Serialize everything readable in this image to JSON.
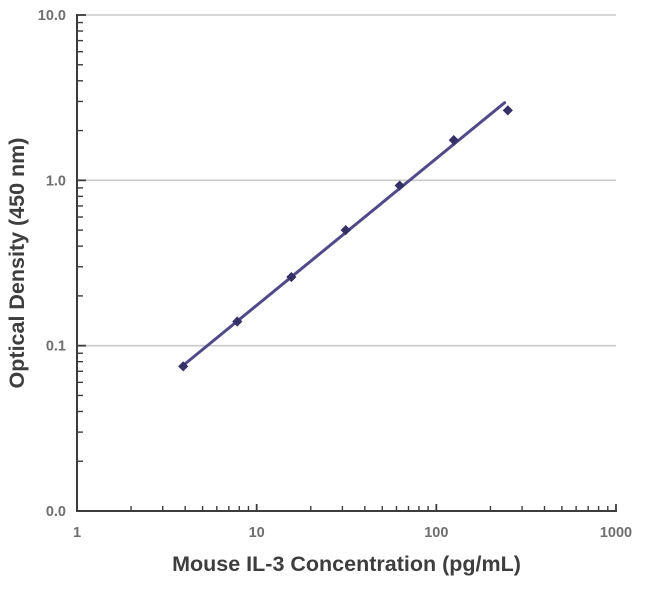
{
  "figure": {
    "background": "#ffffff"
  },
  "chart_data": {
    "type": "scatter",
    "title": "",
    "xlabel": "Mouse IL-3 Concentration (pg/mL)",
    "ylabel": "Optical Density (450 nm)",
    "x_scale": "log",
    "y_scale": "log",
    "xlim": [
      1,
      1000
    ],
    "ylim": [
      0.01,
      10
    ],
    "x_ticks": [
      {
        "value": 1,
        "label": "1"
      },
      {
        "value": 10,
        "label": "10"
      },
      {
        "value": 100,
        "label": "100"
      },
      {
        "value": 1000,
        "label": "1000"
      }
    ],
    "y_ticks": [
      {
        "value": 10,
        "label": "10.0"
      },
      {
        "value": 1,
        "label": "1.0"
      },
      {
        "value": 0.1,
        "label": "0.1"
      },
      {
        "value": 0.01,
        "label": "0.0"
      }
    ],
    "gridlines_y": [
      10,
      1,
      0.1
    ],
    "minor_tick_decades_x": [
      1,
      10,
      100
    ],
    "minor_tick_decades_y": [
      0.01,
      0.1,
      1
    ],
    "points": [
      {
        "x": 3.9,
        "y": 0.075
      },
      {
        "x": 7.8,
        "y": 0.14
      },
      {
        "x": 15.6,
        "y": 0.26
      },
      {
        "x": 31.3,
        "y": 0.5
      },
      {
        "x": 62.5,
        "y": 0.93
      },
      {
        "x": 125,
        "y": 1.75
      },
      {
        "x": 250,
        "y": 2.65
      }
    ],
    "trendline": {
      "x1": 3.9,
      "y1": 0.076,
      "x2": 240,
      "y2": 2.95
    },
    "legend": null,
    "colors": {
      "line": "#514a8a",
      "marker": "#353066",
      "grid": "#cacaca",
      "axis": "#3c3c3c",
      "tick_label": "#6f6f6f",
      "axis_label": "#3e3e3e"
    }
  }
}
